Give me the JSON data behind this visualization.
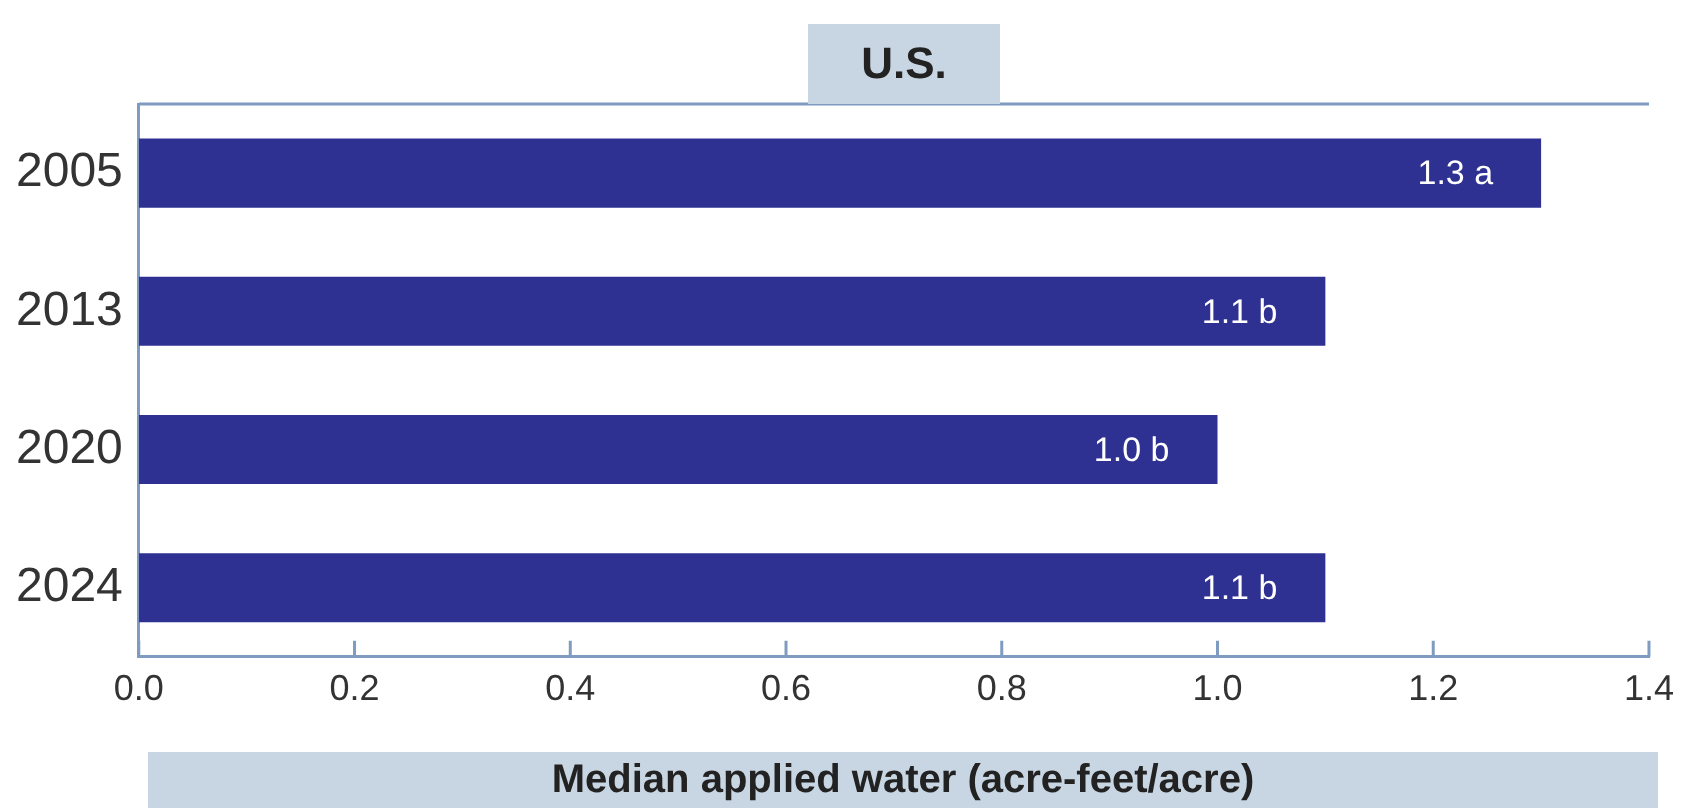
{
  "chart_data": {
    "type": "bar",
    "orientation": "horizontal",
    "title": "U.S.",
    "xlabel": "Median applied water (acre-feet/acre)",
    "categories": [
      "2005",
      "2013",
      "2020",
      "2024"
    ],
    "values": [
      1.3,
      1.1,
      1.0,
      1.1
    ],
    "value_labels": [
      "1.3 a",
      "1.1 b",
      "1.0 b",
      "1.1 b"
    ],
    "color": "#2e3192",
    "xlim": [
      0,
      1.4
    ],
    "xticks": [
      {
        "value": 0,
        "label": "0.0"
      },
      {
        "value": 0.2,
        "label": "0.2"
      },
      {
        "value": 0.4,
        "label": "0.4"
      },
      {
        "value": 0.6,
        "label": "0.6"
      },
      {
        "value": 0.8,
        "label": "0.8"
      },
      {
        "value": 1.0,
        "label": "1.0"
      },
      {
        "value": 1.2,
        "label": "1.2"
      },
      {
        "value": 1.4,
        "label": "1.4"
      }
    ]
  }
}
